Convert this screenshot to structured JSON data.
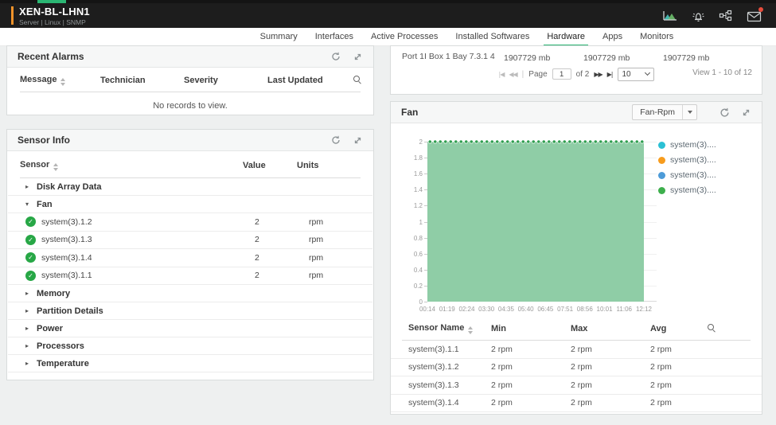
{
  "header": {
    "title": "XEN-BL-LHN1",
    "subtitle": "Server | Linux | SNMP",
    "icons": [
      "performance-chart-icon",
      "alarm-bell-icon",
      "topology-icon",
      "mail-icon"
    ]
  },
  "tabs": {
    "items": [
      {
        "label": "Summary",
        "active": false
      },
      {
        "label": "Interfaces",
        "active": false
      },
      {
        "label": "Active Processes",
        "active": false
      },
      {
        "label": "Installed Softwares",
        "active": false
      },
      {
        "label": "Hardware",
        "active": true
      },
      {
        "label": "Apps",
        "active": false
      },
      {
        "label": "Monitors",
        "active": false
      }
    ]
  },
  "recent_alarms": {
    "title": "Recent Alarms",
    "columns": [
      "Message",
      "Technician",
      "Severity",
      "Last Updated"
    ],
    "empty_text": "No records to view."
  },
  "sensor_info": {
    "title": "Sensor Info",
    "columns": [
      "Sensor",
      "Value",
      "Units"
    ],
    "groups": [
      {
        "label": "Disk Array Data",
        "expanded": false,
        "rows": []
      },
      {
        "label": "Fan",
        "expanded": true,
        "rows": [
          {
            "name": "system(3).1.2",
            "value": "2",
            "units": "rpm"
          },
          {
            "name": "system(3).1.3",
            "value": "2",
            "units": "rpm"
          },
          {
            "name": "system(3).1.4",
            "value": "2",
            "units": "rpm"
          },
          {
            "name": "system(3).1.1",
            "value": "2",
            "units": "rpm"
          }
        ]
      },
      {
        "label": "Memory",
        "expanded": false,
        "rows": []
      },
      {
        "label": "Partition Details",
        "expanded": false,
        "rows": []
      },
      {
        "label": "Power",
        "expanded": false,
        "rows": []
      },
      {
        "label": "Processors",
        "expanded": false,
        "rows": []
      },
      {
        "label": "Temperature",
        "expanded": false,
        "rows": []
      }
    ]
  },
  "hardware_table": {
    "row": {
      "label": "Port 1I Box 1 Bay 7.3.1 4",
      "values": [
        "1907729 mb",
        "1907729 mb",
        "1907729 mb"
      ]
    },
    "pagination": {
      "page_label": "Page",
      "page_value": "1",
      "of_label": "of 2",
      "page_size": "10",
      "view_label": "View 1 - 10 of 12"
    }
  },
  "fan_panel": {
    "title": "Fan",
    "dropdown_value": "Fan-Rpm",
    "stats": {
      "columns": [
        "Sensor Name",
        "Min",
        "Max",
        "Avg"
      ],
      "rows": [
        {
          "name": "system(3).1.1",
          "min": "2 rpm",
          "max": "2 rpm",
          "avg": "2 rpm"
        },
        {
          "name": "system(3).1.2",
          "min": "2 rpm",
          "max": "2 rpm",
          "avg": "2 rpm"
        },
        {
          "name": "system(3).1.3",
          "min": "2 rpm",
          "max": "2 rpm",
          "avg": "2 rpm"
        },
        {
          "name": "system(3).1.4",
          "min": "2 rpm",
          "max": "2 rpm",
          "avg": "2 rpm"
        }
      ]
    }
  },
  "chart_data": {
    "type": "area",
    "title": "Fan - Fan-Rpm",
    "x": [
      "00:14",
      "01:19",
      "02:24",
      "03:30",
      "04:35",
      "05:40",
      "06:45",
      "07:51",
      "08:56",
      "10:01",
      "11:06",
      "12:12"
    ],
    "series": [
      {
        "name": "system(3).1.1",
        "color": "#2bc0d4",
        "values": [
          2,
          2,
          2,
          2,
          2,
          2,
          2,
          2,
          2,
          2,
          2,
          2
        ]
      },
      {
        "name": "system(3).1.2",
        "color": "#f79c1d",
        "values": [
          2,
          2,
          2,
          2,
          2,
          2,
          2,
          2,
          2,
          2,
          2,
          2
        ]
      },
      {
        "name": "system(3).1.3",
        "color": "#4d9bd8",
        "values": [
          2,
          2,
          2,
          2,
          2,
          2,
          2,
          2,
          2,
          2,
          2,
          2
        ]
      },
      {
        "name": "system(3).1.4",
        "color": "#3daf4c",
        "values": [
          2,
          2,
          2,
          2,
          2,
          2,
          2,
          2,
          2,
          2,
          2,
          2
        ]
      }
    ],
    "legend_labels": [
      "system(3)....",
      "system(3)....",
      "system(3)....",
      "system(3)...."
    ],
    "legend_position": "right",
    "ylim": [
      0,
      2
    ],
    "yticks": [
      0,
      0.2,
      0.4,
      0.6,
      0.8,
      1,
      1.2,
      1.4,
      1.6,
      1.8,
      2
    ],
    "grid": true,
    "area_fill": "#8fcda6",
    "marker_color": "#2f9e4f"
  }
}
